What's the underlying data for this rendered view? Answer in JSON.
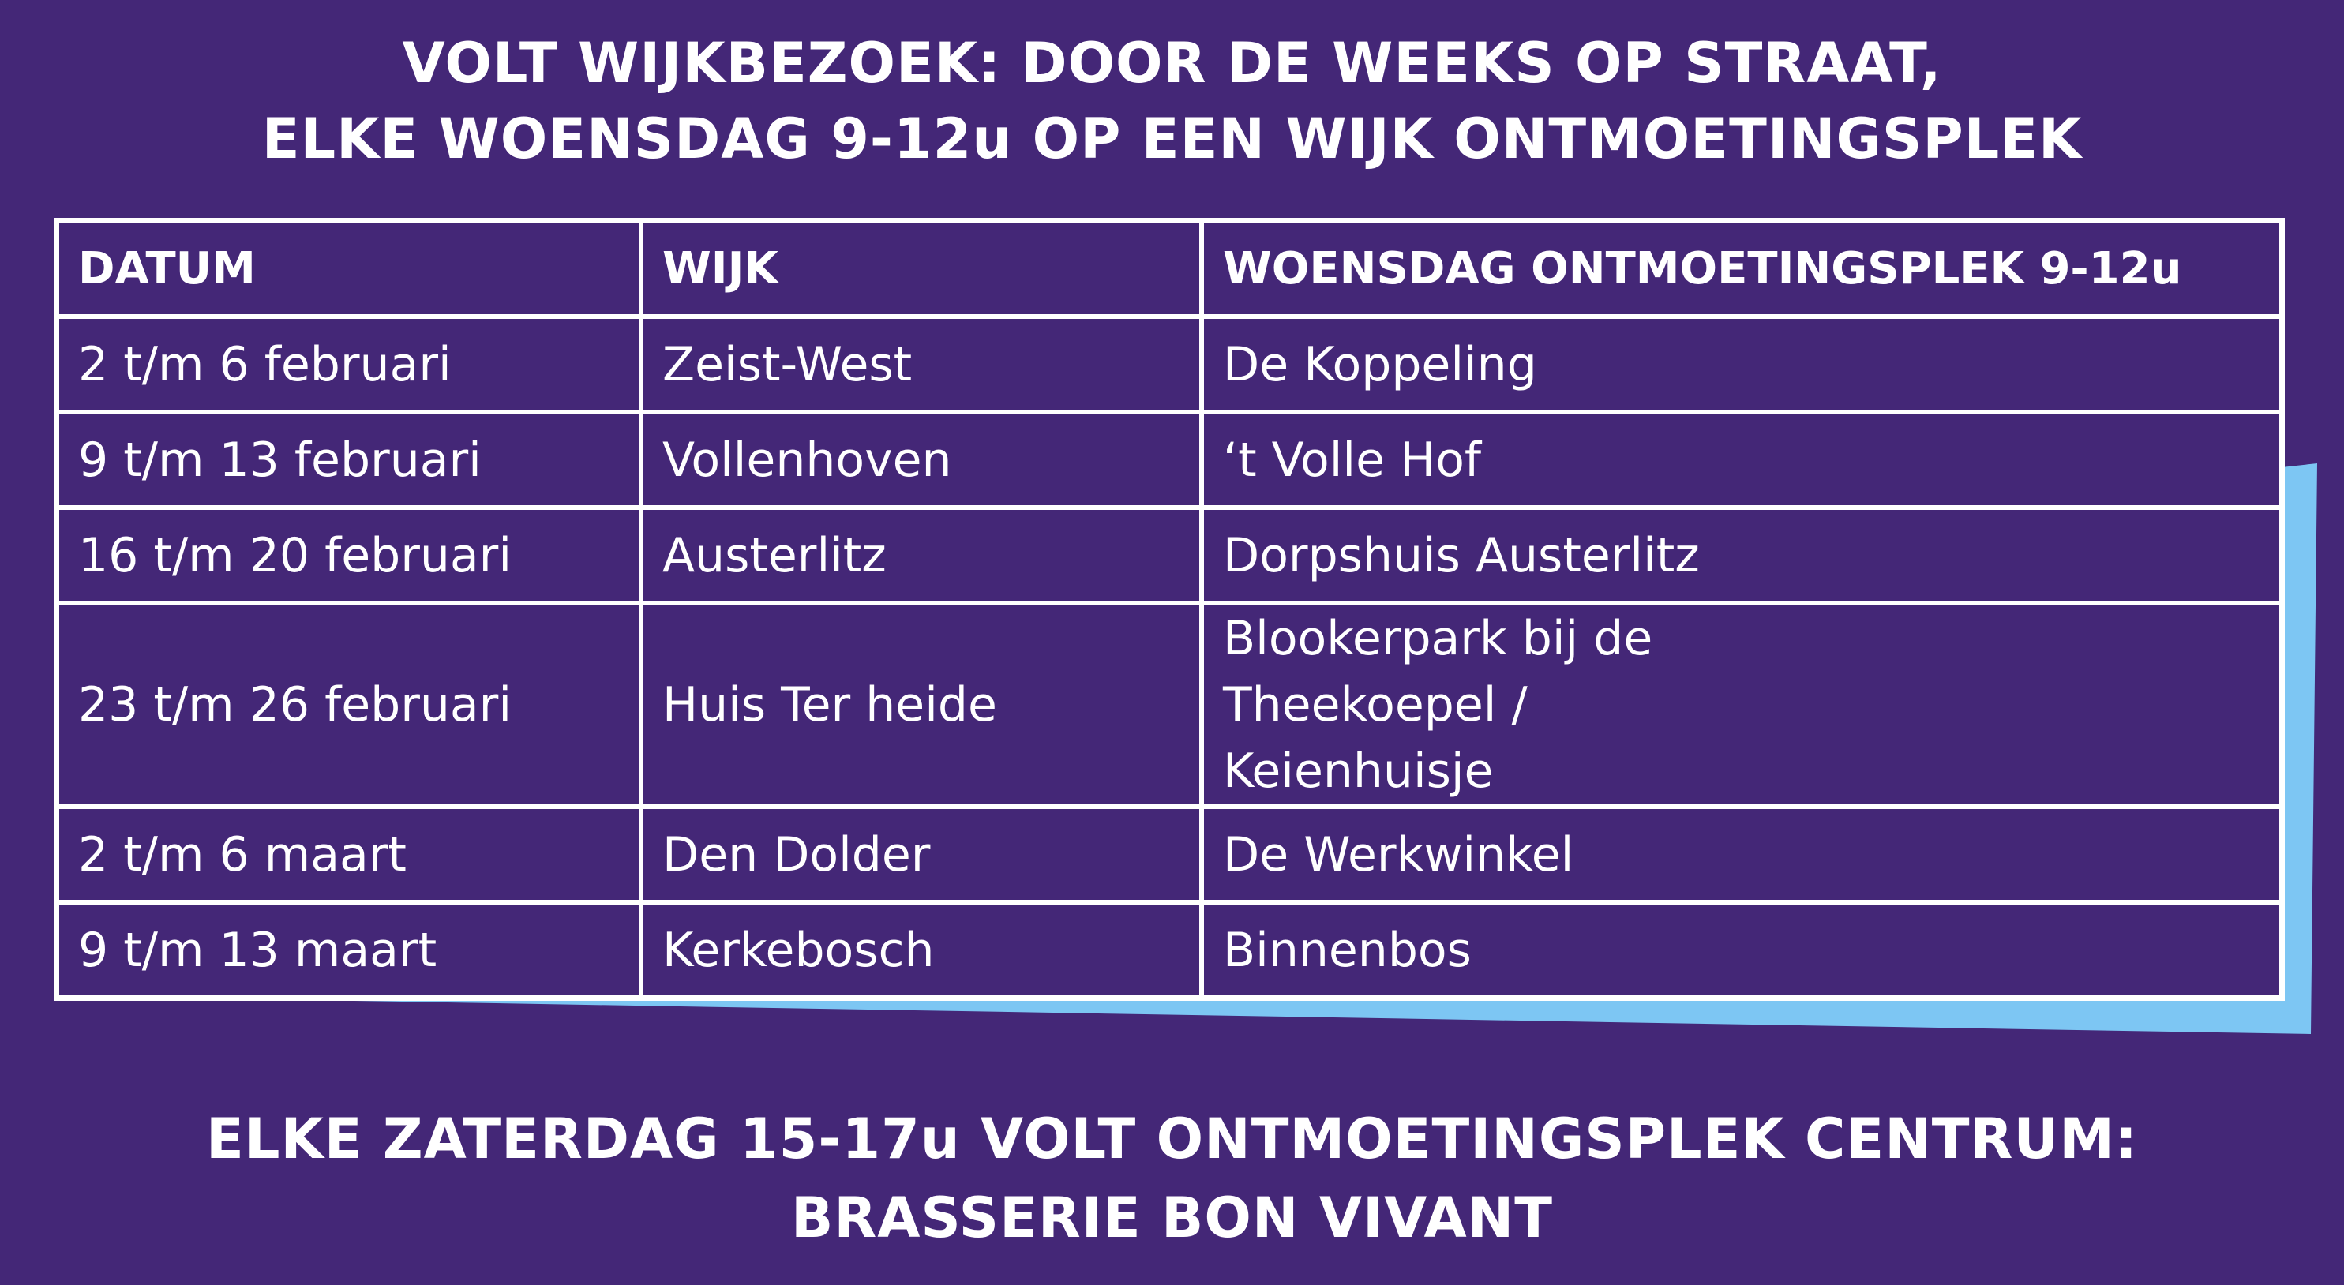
{
  "header": {
    "line1": "VOLT WIJKBEZOEK:  DOOR DE WEEKS OP STRAAT,",
    "line2": "ELKE WOENSDAG 9-12u OP EEN WIJK ONTMOETINGSPLEK"
  },
  "table": {
    "columns": [
      "DATUM",
      "WIJK",
      "WOENSDAG ONTMOETINGSPLEK 9-12u"
    ],
    "rows": [
      [
        "2 t/m 6 februari",
        "Zeist-West",
        "De Koppeling"
      ],
      [
        "9 t/m 13 februari",
        "Vollenhoven",
        "‘t Volle Hof"
      ],
      [
        "16 t/m 20 februari",
        "Austerlitz",
        "Dorpshuis Austerlitz"
      ],
      [
        "23 t/m 26 februari",
        "Huis Ter heide",
        "Blookerpark bij de Theekoepel / Keienhuisje"
      ],
      [
        "2 t/m 6 maart",
        "Den Dolder",
        "De Werkwinkel"
      ],
      [
        "9 t/m 13 maart",
        "Kerkebosch",
        "Binnenbos"
      ]
    ]
  },
  "footer": {
    "line1": "ELKE ZATERDAG 15-17u VOLT ONTMOETINGSPLEK CENTRUM:",
    "line2": "BRASSERIE BON VIVANT"
  },
  "colors": {
    "background": "#442777",
    "accent": "#7dc6f3",
    "text": "#ffffff"
  }
}
